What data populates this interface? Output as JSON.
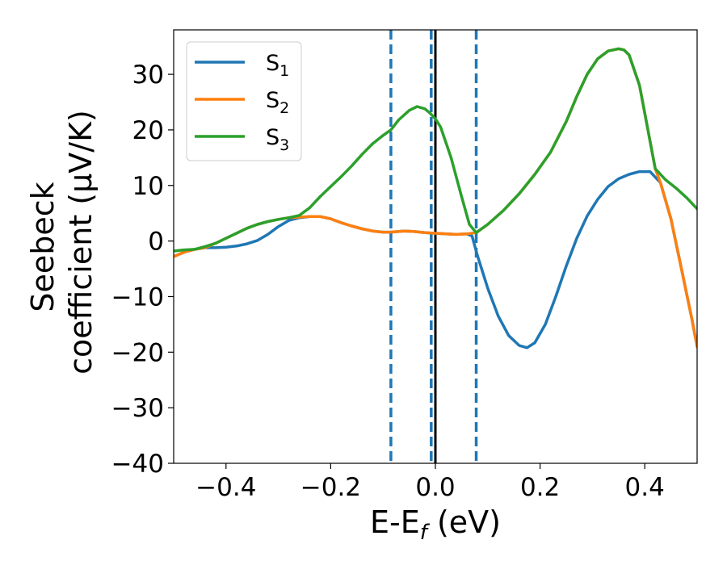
{
  "chart_data": {
    "type": "line",
    "title": "",
    "xlabel": {
      "main": "E-E",
      "sub": "f",
      "rest": " (eV)"
    },
    "ylabel": {
      "line1": "Seebeck",
      "line2": "coefficient  (μV/K)"
    },
    "xlim": [
      -0.5,
      0.5
    ],
    "ylim": [
      -40,
      38
    ],
    "xticks": [
      -0.4,
      -0.2,
      0.0,
      0.2,
      0.4
    ],
    "xtick_labels": [
      "−0.4",
      "−0.2",
      "0.0",
      "0.2",
      "0.4"
    ],
    "yticks": [
      -40,
      -30,
      -20,
      -10,
      0,
      10,
      20,
      30
    ],
    "ytick_labels": [
      "−40",
      "−30",
      "−20",
      "−10",
      "0",
      "10",
      "20",
      "30"
    ],
    "grid": false,
    "legend_position": "top-left",
    "vertical_lines": [
      {
        "x": -0.085,
        "style": "dashed",
        "color": "#1f77b4"
      },
      {
        "x": -0.008,
        "style": "dashed",
        "color": "#1f77b4"
      },
      {
        "x": 0.078,
        "style": "dashed",
        "color": "#1f77b4"
      },
      {
        "x": 0.0,
        "style": "solid",
        "color": "#000000"
      }
    ],
    "series": [
      {
        "name": "S",
        "name_sub": "1",
        "color": "#1f77b4",
        "points": [
          [
            -0.5,
            -2.8
          ],
          [
            -0.48,
            -2.0
          ],
          [
            -0.46,
            -1.5
          ],
          [
            -0.44,
            -1.2
          ],
          [
            -0.42,
            -1.2
          ],
          [
            -0.4,
            -1.1
          ],
          [
            -0.38,
            -0.9
          ],
          [
            -0.36,
            -0.5
          ],
          [
            -0.34,
            0.1
          ],
          [
            -0.32,
            1.2
          ],
          [
            -0.3,
            2.6
          ],
          [
            -0.28,
            3.7
          ],
          [
            -0.26,
            4.2
          ],
          [
            -0.24,
            4.4
          ],
          [
            -0.22,
            4.4
          ],
          [
            -0.2,
            4.0
          ],
          [
            -0.18,
            3.3
          ],
          [
            -0.16,
            2.7
          ],
          [
            -0.14,
            2.2
          ],
          [
            -0.12,
            1.8
          ],
          [
            -0.1,
            1.6
          ],
          [
            -0.085,
            1.6
          ],
          [
            -0.06,
            1.8
          ],
          [
            -0.04,
            1.7
          ],
          [
            -0.02,
            1.5
          ],
          [
            0.0,
            1.4
          ],
          [
            0.02,
            1.3
          ],
          [
            0.04,
            1.2
          ],
          [
            0.06,
            1.3
          ],
          [
            0.07,
            0.9
          ],
          [
            0.08,
            -2.5
          ],
          [
            0.1,
            -8.5
          ],
          [
            0.12,
            -13.5
          ],
          [
            0.14,
            -17.0
          ],
          [
            0.16,
            -18.8
          ],
          [
            0.175,
            -19.2
          ],
          [
            0.19,
            -18.3
          ],
          [
            0.21,
            -15.0
          ],
          [
            0.23,
            -10.0
          ],
          [
            0.25,
            -4.5
          ],
          [
            0.27,
            0.5
          ],
          [
            0.29,
            4.5
          ],
          [
            0.31,
            7.5
          ],
          [
            0.33,
            9.8
          ],
          [
            0.35,
            11.2
          ],
          [
            0.37,
            12.0
          ],
          [
            0.39,
            12.5
          ],
          [
            0.41,
            12.5
          ],
          [
            0.43,
            10.5
          ],
          [
            0.45,
            4.0
          ],
          [
            0.47,
            -5.0
          ],
          [
            0.49,
            -14.0
          ],
          [
            0.5,
            -19.0
          ]
        ]
      },
      {
        "name": "S",
        "name_sub": "2",
        "color": "#ff7f0e",
        "points": [
          [
            -0.5,
            -2.8
          ],
          [
            -0.48,
            -2.0
          ],
          [
            -0.46,
            -1.5
          ],
          [
            -0.44,
            -1.2
          ],
          [
            -0.42,
            -0.4
          ],
          [
            -0.4,
            0.5
          ],
          [
            -0.38,
            1.4
          ],
          [
            -0.36,
            2.3
          ],
          [
            -0.34,
            3.0
          ],
          [
            -0.32,
            3.5
          ],
          [
            -0.3,
            3.9
          ],
          [
            -0.28,
            4.2
          ],
          [
            -0.26,
            4.3
          ],
          [
            -0.24,
            4.4
          ],
          [
            -0.22,
            4.4
          ],
          [
            -0.2,
            4.0
          ],
          [
            -0.18,
            3.3
          ],
          [
            -0.16,
            2.7
          ],
          [
            -0.14,
            2.2
          ],
          [
            -0.12,
            1.8
          ],
          [
            -0.1,
            1.6
          ],
          [
            -0.085,
            1.6
          ],
          [
            -0.06,
            1.8
          ],
          [
            -0.04,
            1.7
          ],
          [
            -0.02,
            1.5
          ],
          [
            0.0,
            1.4
          ],
          [
            0.02,
            1.3
          ],
          [
            0.04,
            1.2
          ],
          [
            0.06,
            1.3
          ],
          [
            0.078,
            1.5
          ],
          [
            0.1,
            3.0
          ],
          [
            0.13,
            5.5
          ],
          [
            0.16,
            8.5
          ],
          [
            0.19,
            12.0
          ],
          [
            0.22,
            16.0
          ],
          [
            0.25,
            21.5
          ],
          [
            0.27,
            26.0
          ],
          [
            0.29,
            30.0
          ],
          [
            0.31,
            32.8
          ],
          [
            0.33,
            34.2
          ],
          [
            0.35,
            34.6
          ],
          [
            0.36,
            34.4
          ],
          [
            0.37,
            33.5
          ],
          [
            0.39,
            28.0
          ],
          [
            0.41,
            18.0
          ],
          [
            0.42,
            13.0
          ],
          [
            0.43,
            10.5
          ],
          [
            0.45,
            4.0
          ],
          [
            0.47,
            -5.0
          ],
          [
            0.49,
            -14.0
          ],
          [
            0.5,
            -19.0
          ]
        ]
      },
      {
        "name": "S",
        "name_sub": "3",
        "color": "#2ca02c",
        "points": [
          [
            -0.5,
            -1.8
          ],
          [
            -0.48,
            -1.6
          ],
          [
            -0.46,
            -1.5
          ],
          [
            -0.44,
            -1.0
          ],
          [
            -0.42,
            -0.4
          ],
          [
            -0.4,
            0.5
          ],
          [
            -0.38,
            1.4
          ],
          [
            -0.36,
            2.3
          ],
          [
            -0.34,
            3.0
          ],
          [
            -0.32,
            3.5
          ],
          [
            -0.3,
            3.9
          ],
          [
            -0.28,
            4.2
          ],
          [
            -0.26,
            4.6
          ],
          [
            -0.24,
            6.0
          ],
          [
            -0.22,
            8.0
          ],
          [
            -0.2,
            9.8
          ],
          [
            -0.18,
            11.6
          ],
          [
            -0.16,
            13.5
          ],
          [
            -0.14,
            15.6
          ],
          [
            -0.12,
            17.5
          ],
          [
            -0.1,
            19.0
          ],
          [
            -0.085,
            20.0
          ],
          [
            -0.07,
            21.8
          ],
          [
            -0.05,
            23.5
          ],
          [
            -0.035,
            24.2
          ],
          [
            -0.02,
            23.8
          ],
          [
            -0.01,
            23.0
          ],
          [
            0.0,
            22.0
          ],
          [
            0.01,
            20.5
          ],
          [
            0.03,
            15.0
          ],
          [
            0.05,
            8.0
          ],
          [
            0.065,
            3.0
          ],
          [
            0.078,
            1.5
          ],
          [
            0.1,
            3.0
          ],
          [
            0.13,
            5.5
          ],
          [
            0.16,
            8.5
          ],
          [
            0.19,
            12.0
          ],
          [
            0.22,
            16.0
          ],
          [
            0.25,
            21.5
          ],
          [
            0.27,
            26.0
          ],
          [
            0.29,
            30.0
          ],
          [
            0.31,
            32.8
          ],
          [
            0.33,
            34.2
          ],
          [
            0.35,
            34.6
          ],
          [
            0.36,
            34.4
          ],
          [
            0.37,
            33.5
          ],
          [
            0.39,
            28.0
          ],
          [
            0.41,
            18.0
          ],
          [
            0.42,
            13.0
          ],
          [
            0.44,
            11.0
          ],
          [
            0.46,
            9.5
          ],
          [
            0.48,
            7.8
          ],
          [
            0.5,
            5.8
          ]
        ]
      }
    ]
  }
}
